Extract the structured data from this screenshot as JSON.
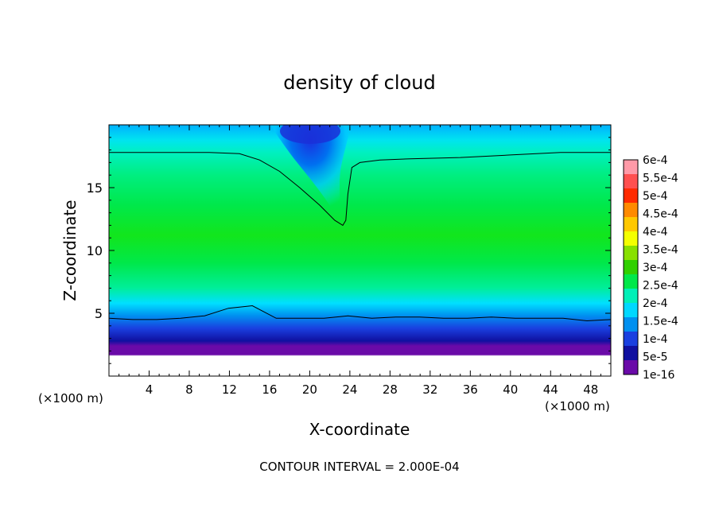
{
  "chart_data": {
    "type": "heatmap",
    "title": "density of cloud",
    "xlabel": "X-coordinate",
    "ylabel": "Z-coordinate",
    "x_unit_left": "(×1000 m)",
    "x_unit_right": "(×1000 m)",
    "xlim": [
      0,
      50
    ],
    "ylim": [
      0,
      20
    ],
    "x_ticks": [
      4,
      8,
      12,
      16,
      20,
      24,
      28,
      32,
      36,
      40,
      44,
      48
    ],
    "y_ticks": [
      5,
      10,
      15
    ],
    "footer": "CONTOUR INTERVAL = 2.000E-04",
    "colorbar": {
      "labels": [
        "6e-4",
        "5.5e-4",
        "5e-4",
        "4.5e-4",
        "4e-4",
        "3.5e-4",
        "3e-4",
        "2.5e-4",
        "2e-4",
        "1.5e-4",
        "1e-4",
        "5e-5",
        "1e-16"
      ],
      "colors": [
        "#ff9aa8",
        "#ff5050",
        "#ff2a00",
        "#ff8a00",
        "#ffc800",
        "#f4ff00",
        "#88e000",
        "#30d000",
        "#00e84a",
        "#00f0b8",
        "#00d8ff",
        "#0090f0",
        "#1a40e0",
        "#1010a0",
        "#6a0aa8"
      ]
    },
    "contour_levels": [
      0.0002
    ],
    "lower_contour_z": [
      4.6,
      4.5,
      4.5,
      4.6,
      4.8,
      5.4,
      5.6,
      4.6,
      4.6,
      4.6,
      4.8,
      4.6,
      4.7,
      4.7,
      4.6,
      4.6,
      4.7,
      4.6,
      4.6,
      4.6,
      4.4,
      4.5
    ],
    "upper_contour": {
      "x": [
        0,
        5,
        10,
        13,
        15,
        17,
        19,
        21,
        22.5,
        23.3,
        23.6,
        23.8,
        24.2,
        25,
        27,
        30,
        35,
        40,
        45,
        50
      ],
      "z": [
        17.8,
        17.8,
        17.8,
        17.7,
        17.2,
        16.3,
        15.0,
        13.6,
        12.4,
        12.0,
        12.4,
        14.5,
        16.6,
        17.0,
        17.2,
        17.3,
        17.4,
        17.6,
        17.8,
        17.8
      ]
    }
  }
}
